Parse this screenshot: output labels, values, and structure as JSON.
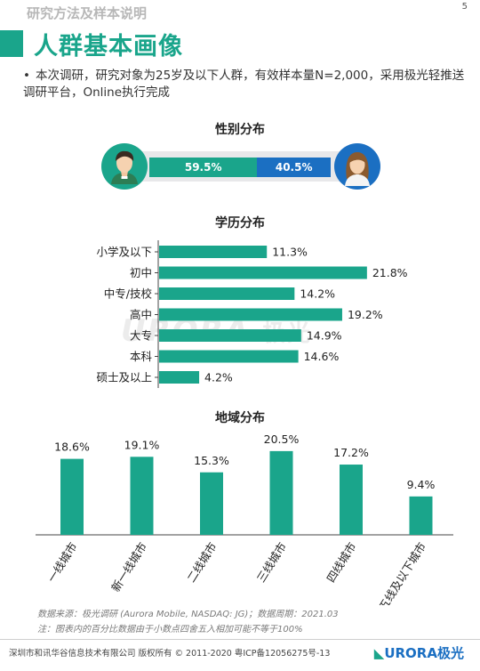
{
  "header": {
    "section_title": "研究方法及样本说明",
    "page_number": "5",
    "main_title": "人群基本画像",
    "intro_bullet": "•",
    "intro": "本次调研，研究对象为25岁及以下人群，有效样本量N=2,000，采用极光轻推送调研平台，Online执行完成"
  },
  "colors": {
    "accent": "#1aa58b",
    "female": "#1b6fc2",
    "track": "#e8e8ea"
  },
  "icons": {
    "male": "male-avatar-icon",
    "female": "female-avatar-icon",
    "logo": "aurora-logo-icon"
  },
  "chart_data": [
    {
      "type": "bar",
      "title": "性别分布",
      "orientation": "stacked-horizontal",
      "categories": [
        "男",
        "女"
      ],
      "values": [
        59.5,
        40.5
      ],
      "labels": [
        "59.5%",
        "40.5%"
      ]
    },
    {
      "type": "bar",
      "title": "学历分布",
      "orientation": "horizontal",
      "categories": [
        "小学及以下",
        "初中",
        "中专/技校",
        "高中",
        "大专",
        "本科",
        "硕士及以上"
      ],
      "values": [
        11.3,
        21.8,
        14.2,
        19.2,
        14.9,
        14.6,
        4.2
      ],
      "labels": [
        "11.3%",
        "21.8%",
        "14.2%",
        "19.2%",
        "14.9%",
        "14.6%",
        "4.2%"
      ],
      "xlim": [
        0,
        22
      ]
    },
    {
      "type": "bar",
      "title": "地域分布",
      "orientation": "vertical",
      "categories": [
        "一线城市",
        "新一线城市",
        "二线城市",
        "三线城市",
        "四线城市",
        "五线及以下城市"
      ],
      "values": [
        18.6,
        19.1,
        15.3,
        20.5,
        17.2,
        9.4
      ],
      "labels": [
        "18.6%",
        "19.1%",
        "15.3%",
        "20.5%",
        "17.2%",
        "9.4%"
      ],
      "ylim": [
        0,
        22
      ]
    }
  ],
  "watermark": {
    "latin": "URORA",
    "cn": "极光"
  },
  "notes": {
    "source": "数据来源：极光调研 (Aurora Mobile, NASDAQ: JG)；数据周期：2021.03",
    "note": "注：图表内的百分比数据由于小数点四舍五入相加可能不等于100%"
  },
  "footer": {
    "text": "深圳市和讯华谷信息技术有限公司 版权所有 © 2011-2020 粤ICP备12056275号-13",
    "brand_latin": "URORA",
    "brand_cn": "极光"
  }
}
